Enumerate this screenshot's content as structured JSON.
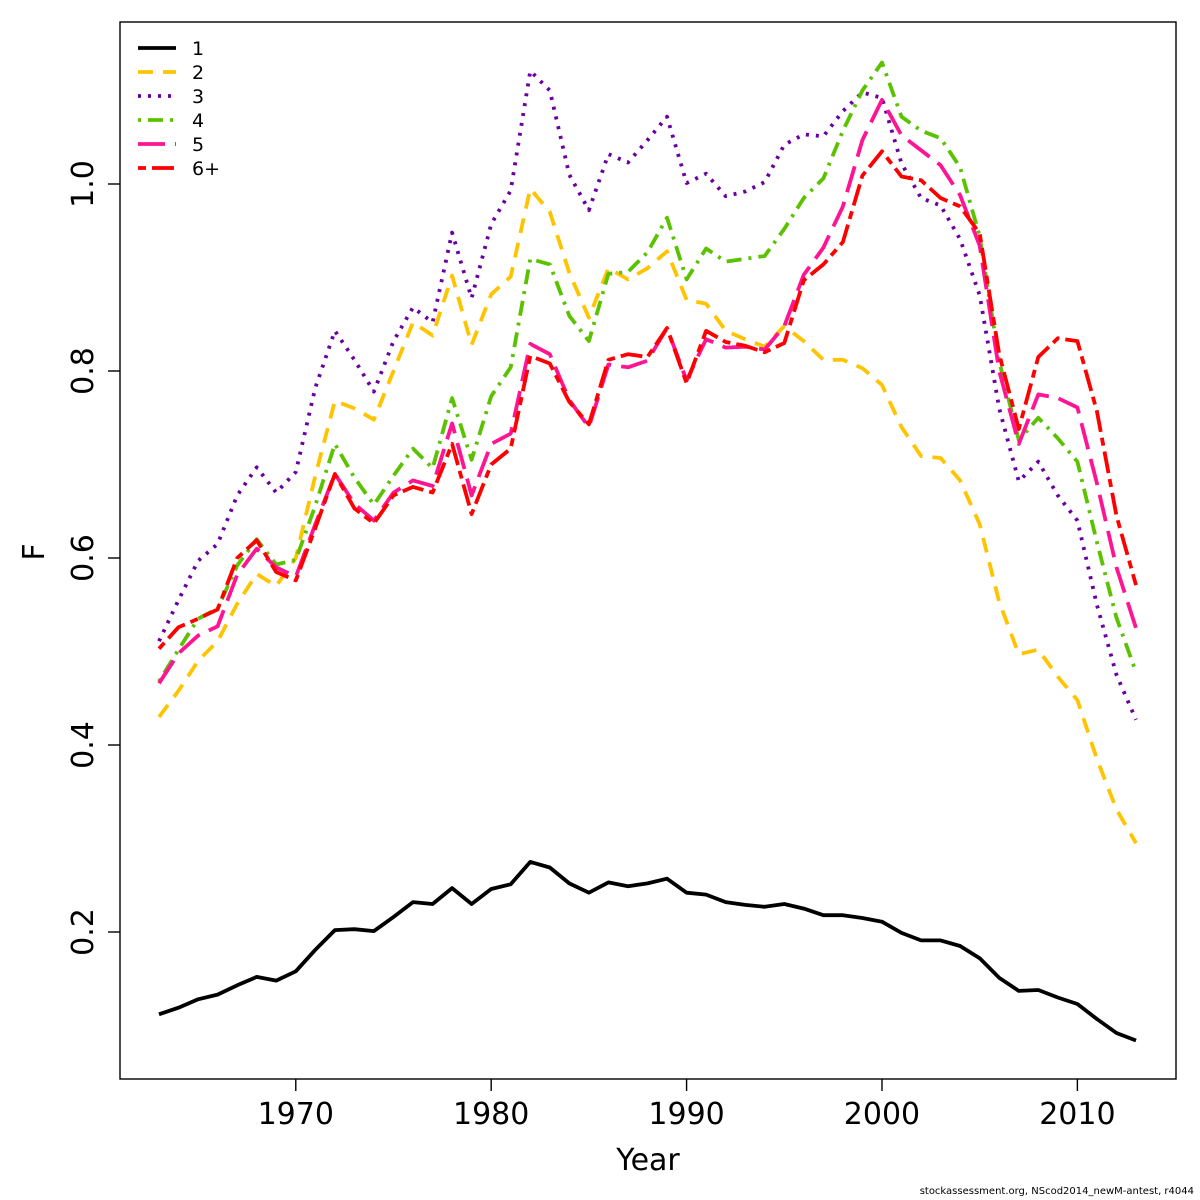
{
  "chart_data": {
    "type": "line",
    "title": "",
    "xlabel": "Year",
    "ylabel": "F",
    "xlim": [
      1962,
      2015
    ],
    "ylim": [
      0.05,
      1.17
    ],
    "x_ticks": [
      1970,
      1980,
      1990,
      2000,
      2010
    ],
    "y_ticks": [
      0.2,
      0.4,
      0.6,
      0.8,
      1.0
    ],
    "x_tick_labels": [
      "1970",
      "1980",
      "1990",
      "2000",
      "2010"
    ],
    "y_tick_labels": [
      "0.2",
      "0.4",
      "0.6",
      "0.8",
      "1.0"
    ],
    "grid": false,
    "legend_position": "top-left",
    "x": [
      1963,
      1964,
      1965,
      1966,
      1967,
      1968,
      1969,
      1970,
      1971,
      1972,
      1973,
      1974,
      1975,
      1976,
      1977,
      1978,
      1979,
      1980,
      1981,
      1982,
      1983,
      1984,
      1985,
      1986,
      1987,
      1988,
      1989,
      1990,
      1991,
      1992,
      1993,
      1994,
      1995,
      1996,
      1997,
      1998,
      1999,
      2000,
      2001,
      2002,
      2003,
      2004,
      2005,
      2006,
      2007,
      2008,
      2009,
      2010,
      2011,
      2012,
      2013
    ],
    "series": [
      {
        "name": "1",
        "color": "#000000",
        "dash": "solid",
        "values": [
          0.112,
          0.119,
          0.128,
          0.133,
          0.143,
          0.152,
          0.148,
          0.158,
          0.181,
          0.202,
          0.203,
          0.201,
          0.216,
          0.232,
          0.23,
          0.247,
          0.23,
          0.246,
          0.251,
          0.275,
          0.269,
          0.252,
          0.242,
          0.253,
          0.249,
          0.252,
          0.257,
          0.242,
          0.24,
          0.232,
          0.229,
          0.227,
          0.23,
          0.225,
          0.218,
          0.218,
          0.215,
          0.211,
          0.199,
          0.191,
          0.191,
          0.185,
          0.172,
          0.151,
          0.137,
          0.138,
          0.13,
          0.123,
          0.107,
          0.092,
          0.084
        ]
      },
      {
        "name": "2",
        "color": "#FFC400",
        "dash": "dashed",
        "values": [
          0.43,
          0.458,
          0.49,
          0.511,
          0.551,
          0.583,
          0.57,
          0.6,
          0.688,
          0.768,
          0.76,
          0.748,
          0.8,
          0.852,
          0.838,
          0.902,
          0.828,
          0.882,
          0.901,
          0.995,
          0.97,
          0.905,
          0.857,
          0.91,
          0.898,
          0.91,
          0.928,
          0.876,
          0.872,
          0.843,
          0.834,
          0.826,
          0.848,
          0.832,
          0.812,
          0.812,
          0.803,
          0.785,
          0.74,
          0.709,
          0.707,
          0.683,
          0.636,
          0.553,
          0.497,
          0.502,
          0.473,
          0.448,
          0.385,
          0.331,
          0.295
        ]
      },
      {
        "name": "3",
        "color": "#6B00A0",
        "dash": "dotted",
        "values": [
          0.511,
          0.555,
          0.597,
          0.615,
          0.667,
          0.697,
          0.67,
          0.692,
          0.782,
          0.843,
          0.812,
          0.778,
          0.832,
          0.868,
          0.852,
          0.948,
          0.878,
          0.957,
          0.993,
          1.121,
          1.1,
          1.01,
          0.972,
          1.032,
          1.023,
          1.047,
          1.072,
          1.001,
          1.011,
          0.987,
          0.992,
          1.002,
          1.042,
          1.053,
          1.051,
          1.078,
          1.098,
          1.092,
          1.022,
          0.985,
          0.977,
          0.941,
          0.881,
          0.76,
          0.682,
          0.703,
          0.667,
          0.64,
          0.55,
          0.475,
          0.427
        ]
      },
      {
        "name": "4",
        "color": "#5BC200",
        "dash": "dotdash",
        "values": [
          0.468,
          0.502,
          0.535,
          0.546,
          0.592,
          0.62,
          0.593,
          0.598,
          0.656,
          0.722,
          0.686,
          0.657,
          0.688,
          0.717,
          0.696,
          0.771,
          0.705,
          0.773,
          0.804,
          0.92,
          0.914,
          0.859,
          0.832,
          0.904,
          0.906,
          0.927,
          0.964,
          0.898,
          0.931,
          0.917,
          0.92,
          0.923,
          0.952,
          0.985,
          1.006,
          1.057,
          1.1,
          1.13,
          1.072,
          1.057,
          1.049,
          1.018,
          0.944,
          0.81,
          0.726,
          0.75,
          0.728,
          0.703,
          0.617,
          0.536,
          0.478
        ]
      },
      {
        "name": "5",
        "color": "#FF1493",
        "dash": "longdash",
        "values": [
          0.466,
          0.498,
          0.517,
          0.527,
          0.582,
          0.61,
          0.59,
          0.58,
          0.636,
          0.69,
          0.658,
          0.64,
          0.67,
          0.683,
          0.677,
          0.744,
          0.667,
          0.722,
          0.733,
          0.829,
          0.818,
          0.769,
          0.74,
          0.807,
          0.804,
          0.811,
          0.846,
          0.79,
          0.834,
          0.825,
          0.826,
          0.823,
          0.848,
          0.903,
          0.932,
          0.976,
          1.047,
          1.09,
          1.052,
          1.036,
          1.02,
          0.988,
          0.934,
          0.8,
          0.722,
          0.775,
          0.771,
          0.761,
          0.68,
          0.59,
          0.525
        ]
      },
      {
        "name": "6+",
        "color": "#FF0000",
        "dash": "twodash",
        "values": [
          0.503,
          0.526,
          0.535,
          0.545,
          0.6,
          0.619,
          0.585,
          0.576,
          0.632,
          0.69,
          0.653,
          0.637,
          0.667,
          0.676,
          0.67,
          0.722,
          0.647,
          0.7,
          0.717,
          0.816,
          0.808,
          0.767,
          0.743,
          0.812,
          0.818,
          0.815,
          0.846,
          0.787,
          0.843,
          0.831,
          0.827,
          0.82,
          0.83,
          0.897,
          0.914,
          0.938,
          1.009,
          1.035,
          1.008,
          1.004,
          0.985,
          0.976,
          0.947,
          0.818,
          0.738,
          0.815,
          0.835,
          0.832,
          0.757,
          0.645,
          0.571
        ]
      }
    ]
  },
  "footer": "stockassessment.org, NScod2014_newM-antest, r4044"
}
